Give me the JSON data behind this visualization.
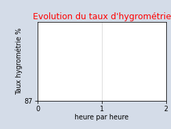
{
  "title": "Evolution du taux d'hygrométrie",
  "title_color": "#ff0000",
  "ylabel": "Taux hygrométrie %",
  "xlabel": "heure par heure",
  "background_color": "#d4dce8",
  "plot_bg_color": "#ffffff",
  "xlim": [
    0,
    2
  ],
  "ylim_min": 87.0,
  "ylim_max": 92.0,
  "xticks": [
    0,
    1,
    2
  ],
  "yticks": [
    87.0
  ],
  "grid": true,
  "title_fontsize": 9,
  "label_fontsize": 7,
  "tick_fontsize": 7
}
